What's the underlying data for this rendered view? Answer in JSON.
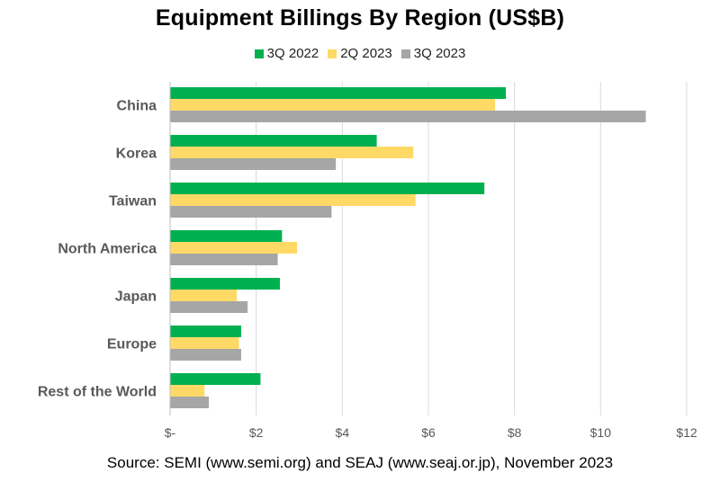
{
  "chart_data": {
    "type": "bar",
    "orientation": "horizontal",
    "title": "Equipment Billings By Region (US$B)",
    "categories": [
      "China",
      "Korea",
      "Taiwan",
      "North America",
      "Japan",
      "Europe",
      "Rest of the World"
    ],
    "series": [
      {
        "name": "3Q 2022",
        "color": "#00B050",
        "values": [
          7.8,
          4.8,
          7.3,
          2.6,
          2.55,
          1.65,
          2.1
        ]
      },
      {
        "name": "2Q 2023",
        "color": "#FFD966",
        "values": [
          7.55,
          5.65,
          5.7,
          2.95,
          1.55,
          1.6,
          0.8
        ]
      },
      {
        "name": "3Q 2023",
        "color": "#A6A6A6",
        "values": [
          11.05,
          3.85,
          3.75,
          2.5,
          1.8,
          1.65,
          0.9
        ]
      }
    ],
    "xlim": [
      0,
      12
    ],
    "xticks": [
      0,
      2,
      4,
      6,
      8,
      10,
      12
    ],
    "xtick_labels": [
      "$-",
      "$2",
      "$4",
      "$6",
      "$8",
      "$10",
      "$12"
    ],
    "xlabel": "",
    "ylabel": "",
    "grid": true,
    "legend_position": "top-center"
  },
  "source_note": "Source: SEMI (www.semi.org) and SEAJ (www.seaj.or.jp), November 2023"
}
